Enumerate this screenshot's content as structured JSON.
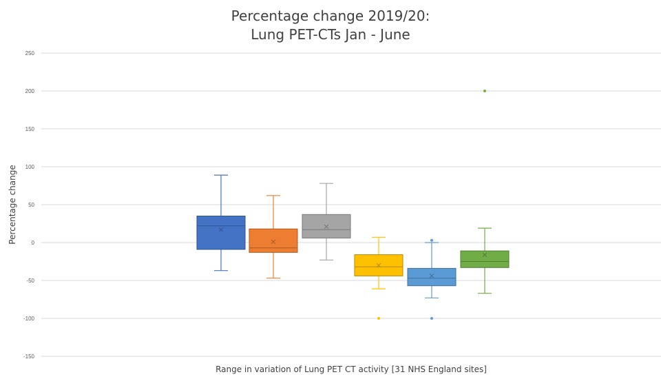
{
  "chart_data": {
    "type": "box",
    "title_lines": [
      "Percentage change 2019/20:",
      "Lung PET-CTs Jan - June"
    ],
    "xlabel": "Range in variation of Lung PET CT activity [31 NHS England sites]",
    "ylabel": "Percentage change",
    "ylim": [
      -150,
      250
    ],
    "yticks": [
      -150,
      -100,
      -50,
      0,
      50,
      100,
      150,
      200,
      250
    ],
    "grid": true,
    "legend": "none",
    "series": [
      {
        "color": "#4472C4",
        "min": -37,
        "q1": -9,
        "median": 22,
        "q3": 35,
        "max": 89,
        "mean": 17,
        "outliers": []
      },
      {
        "color": "#ED7D31",
        "min": -47,
        "q1": -13,
        "median": -7,
        "q3": 18,
        "max": 62,
        "mean": 1,
        "outliers": []
      },
      {
        "color": "#A5A5A5",
        "min": -23,
        "q1": 6,
        "median": 17,
        "q3": 37,
        "max": 78,
        "mean": 21,
        "outliers": []
      },
      {
        "color": "#FFC000",
        "min": -61,
        "q1": -44,
        "median": -32,
        "q3": -16,
        "max": 7,
        "mean": -30,
        "outliers": [
          -100
        ]
      },
      {
        "color": "#5B9BD5",
        "min": -73,
        "q1": -57,
        "median": -47,
        "q3": -34,
        "max": 0,
        "mean": -44,
        "outliers": [
          3,
          -100
        ]
      },
      {
        "color": "#70AD47",
        "min": -67,
        "q1": -33,
        "median": -25,
        "q3": -11,
        "max": 19,
        "mean": -16,
        "outliers": [
          200
        ]
      }
    ]
  }
}
